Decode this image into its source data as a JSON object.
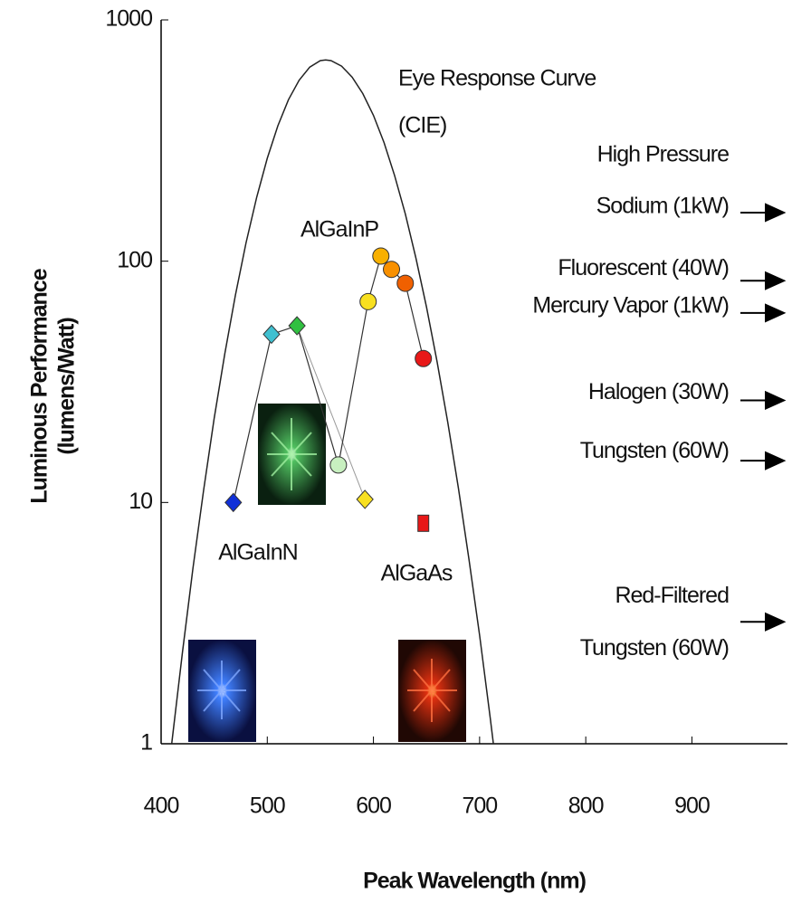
{
  "chart_data": {
    "type": "scatter",
    "xlabel": "Peak Wavelength (nm)",
    "ylabel": [
      "Luminous Performance",
      "(lumens/Watt)"
    ],
    "xlim": [
      400,
      990
    ],
    "ylim": [
      1,
      1000
    ],
    "log_y": true,
    "xticks": [
      400,
      500,
      600,
      700,
      800,
      900
    ],
    "yticks": [
      1,
      10,
      100,
      1000
    ],
    "eye_curve": {
      "label": [
        "Eye Response Curve",
        "(CIE)"
      ],
      "color": "#222222",
      "x": [
        410,
        420,
        430,
        440,
        450,
        460,
        470,
        480,
        490,
        500,
        510,
        520,
        530,
        540,
        550,
        555,
        560,
        570,
        580,
        590,
        600,
        610,
        620,
        630,
        640,
        650,
        660,
        670,
        680,
        690,
        700,
        710,
        713
      ],
      "values": [
        1,
        2.38,
        5.35,
        11.2,
        22.3,
        41.4,
        72.4,
        119,
        184,
        267,
        364,
        467,
        562,
        637,
        678,
        683,
        678,
        643,
        579,
        495,
        402,
        310,
        226,
        157,
        103,
        64.6,
        38.3,
        21.5,
        11.5,
        5.82,
        2.81,
        1.28,
        1
      ]
    },
    "series": [
      {
        "name": "AlGaInN",
        "marker": "diamond",
        "x": [
          468,
          504,
          528
        ],
        "values": [
          10,
          49.8,
          54
        ],
        "colors": [
          "#1030d8",
          "#40c0d0",
          "#30c040"
        ]
      },
      {
        "name": "AlGaInP",
        "marker": "circle",
        "x": [
          567,
          595,
          607,
          617,
          630,
          647
        ],
        "values": [
          14.3,
          68,
          105,
          92.5,
          81,
          39.5
        ],
        "colors": [
          "#c8f0c0",
          "#f8e020",
          "#f8b000",
          "#f89000",
          "#f06000",
          "#e81818"
        ]
      },
      {
        "name": "AlGaAs",
        "marker": "square",
        "x": [
          647
        ],
        "values": [
          8.2
        ],
        "colors": [
          "#e81818"
        ]
      }
    ],
    "extra_point": {
      "x": 592,
      "value": 10.3,
      "color": "#f8e020"
    },
    "lamps": [
      {
        "label": [
          "High Pressure",
          "Sodium (1kW)"
        ],
        "value": 159
      },
      {
        "label": [
          "Fluorescent (40W)"
        ],
        "value": 83
      },
      {
        "label": [
          "Mercury Vapor (1kW)"
        ],
        "value": 61
      },
      {
        "label": [
          "Halogen (30W)"
        ],
        "value": 26.5
      },
      {
        "label": [
          "Tungsten (60W)"
        ],
        "value": 14.9
      },
      {
        "label": [
          "Red-Filtered",
          "Tungsten (60W)"
        ],
        "value": 3.2
      }
    ]
  }
}
